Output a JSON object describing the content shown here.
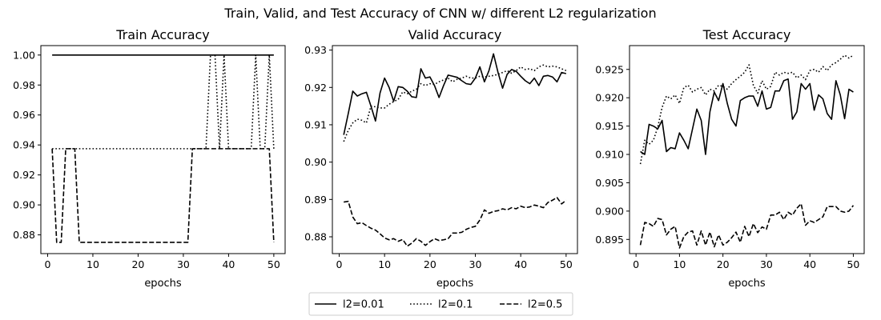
{
  "chart_data": {
    "type": "line",
    "suptitle": "Train, Valid, and Test Accuracy of CNN w/ different L2 regularization",
    "legend": {
      "placement": "bottom-center",
      "entries": [
        {
          "label": "l2=0.01",
          "style": "solid"
        },
        {
          "label": "l2=0.1",
          "style": "dotted"
        },
        {
          "label": "l2=0.5",
          "style": "dashed"
        }
      ]
    },
    "series_styles": {
      "solid": "#000000",
      "dotted": "#000000",
      "dashed": "#000000"
    },
    "panels": [
      {
        "title": "Train Accuracy",
        "xlabel": "epochs",
        "xlim": [
          -1.5,
          52.5
        ],
        "ylim": [
          0.8675,
          1.0063
        ],
        "xticks": [
          0,
          10,
          20,
          30,
          40,
          50
        ],
        "xtick_labels": [
          "0",
          "10",
          "20",
          "30",
          "40",
          "50"
        ],
        "yticks": [
          0.88,
          0.9,
          0.92,
          0.94,
          0.96,
          0.98,
          1.0
        ],
        "ytick_labels": [
          "0.88",
          "0.90",
          "0.92",
          "0.94",
          "0.96",
          "0.98",
          "1.00"
        ],
        "series": [
          {
            "style": "solid",
            "values": [
              1.0,
              1.0,
              1.0,
              1.0,
              1.0,
              1.0,
              1.0,
              1.0,
              1.0,
              1.0,
              1.0,
              1.0,
              1.0,
              1.0,
              1.0,
              1.0,
              1.0,
              1.0,
              1.0,
              1.0,
              1.0,
              1.0,
              1.0,
              1.0,
              1.0,
              1.0,
              1.0,
              1.0,
              1.0,
              1.0,
              1.0,
              1.0,
              1.0,
              1.0,
              1.0,
              1.0,
              1.0,
              1.0,
              1.0,
              1.0,
              1.0,
              1.0,
              1.0,
              1.0,
              1.0,
              1.0,
              1.0,
              1.0,
              1.0,
              1.0
            ]
          },
          {
            "style": "dotted",
            "values": [
              0.9375,
              0.9375,
              0.9375,
              0.9375,
              0.9375,
              0.9375,
              0.9375,
              0.9375,
              0.9375,
              0.9375,
              0.9375,
              0.9375,
              0.9375,
              0.9375,
              0.9375,
              0.9375,
              0.9375,
              0.9375,
              0.9375,
              0.9375,
              0.9375,
              0.9375,
              0.9375,
              0.9375,
              0.9375,
              0.9375,
              0.9375,
              0.9375,
              0.9375,
              0.9375,
              0.9375,
              0.9375,
              0.9375,
              0.9375,
              0.9375,
              1.0,
              1.0,
              0.9375,
              1.0,
              0.9375,
              0.9375,
              0.9375,
              0.9375,
              0.9375,
              0.9375,
              1.0,
              0.9375,
              0.9375,
              1.0,
              0.9375
            ]
          },
          {
            "style": "dashed",
            "values": [
              0.9375,
              0.875,
              0.875,
              0.9375,
              0.9375,
              0.9375,
              0.875,
              0.875,
              0.875,
              0.875,
              0.875,
              0.875,
              0.875,
              0.875,
              0.875,
              0.875,
              0.875,
              0.875,
              0.875,
              0.875,
              0.875,
              0.875,
              0.875,
              0.875,
              0.875,
              0.875,
              0.875,
              0.875,
              0.875,
              0.875,
              0.875,
              0.9375,
              0.9375,
              0.9375,
              0.9375,
              0.9375,
              0.9375,
              0.9375,
              0.9375,
              0.9375,
              0.9375,
              0.9375,
              0.9375,
              0.9375,
              0.9375,
              0.9375,
              0.9375,
              0.9375,
              0.9375,
              0.875
            ]
          }
        ]
      },
      {
        "title": "Valid Accuracy",
        "xlabel": "epochs",
        "xlim": [
          -1.5,
          52.5
        ],
        "ylim": [
          0.8755,
          0.9312
        ],
        "xticks": [
          0,
          10,
          20,
          30,
          40,
          50
        ],
        "xtick_labels": [
          "0",
          "10",
          "20",
          "30",
          "40",
          "50"
        ],
        "yticks": [
          0.88,
          0.89,
          0.9,
          0.91,
          0.92,
          0.93
        ],
        "ytick_labels": [
          "0.88",
          "0.89",
          "0.90",
          "0.91",
          "0.92",
          "0.93"
        ],
        "series": [
          {
            "style": "solid",
            "values": [
              0.9073,
              0.913,
              0.919,
              0.9177,
              0.9183,
              0.9187,
              0.915,
              0.911,
              0.9185,
              0.9225,
              0.92,
              0.9163,
              0.9202,
              0.92,
              0.919,
              0.9175,
              0.9173,
              0.925,
              0.9225,
              0.9228,
              0.9205,
              0.9173,
              0.9205,
              0.9233,
              0.923,
              0.9227,
              0.9218,
              0.921,
              0.9208,
              0.9225,
              0.9255,
              0.9215,
              0.9245,
              0.929,
              0.924,
              0.9198,
              0.9235,
              0.9248,
              0.9243,
              0.923,
              0.9218,
              0.921,
              0.9225,
              0.9205,
              0.923,
              0.9232,
              0.9228,
              0.9215,
              0.924,
              0.9237
            ]
          },
          {
            "style": "dotted",
            "values": [
              0.9055,
              0.9085,
              0.9105,
              0.9115,
              0.9112,
              0.9105,
              0.915,
              0.9148,
              0.9145,
              0.9145,
              0.9155,
              0.9162,
              0.9168,
              0.9188,
              0.9183,
              0.919,
              0.9195,
              0.921,
              0.9205,
              0.921,
              0.9208,
              0.9215,
              0.922,
              0.9225,
              0.9215,
              0.9222,
              0.9225,
              0.923,
              0.9225,
              0.9225,
              0.923,
              0.9228,
              0.923,
              0.9232,
              0.9235,
              0.924,
              0.9245,
              0.9238,
              0.9245,
              0.9255,
              0.9248,
              0.925,
              0.9245,
              0.9255,
              0.926,
              0.9255,
              0.9257,
              0.9255,
              0.925,
              0.9245
            ]
          },
          {
            "style": "dashed",
            "values": [
              0.8893,
              0.8895,
              0.8853,
              0.8835,
              0.8838,
              0.883,
              0.8823,
              0.8818,
              0.8808,
              0.8797,
              0.8792,
              0.8795,
              0.8788,
              0.8793,
              0.8775,
              0.8783,
              0.8795,
              0.8788,
              0.8777,
              0.8787,
              0.8795,
              0.879,
              0.8792,
              0.8795,
              0.881,
              0.881,
              0.8812,
              0.882,
              0.8825,
              0.8828,
              0.8845,
              0.8872,
              0.8863,
              0.8868,
              0.887,
              0.8875,
              0.8872,
              0.8878,
              0.8875,
              0.8882,
              0.8878,
              0.888,
              0.8885,
              0.8882,
              0.8878,
              0.8892,
              0.8898,
              0.8905,
              0.8888,
              0.8898
            ]
          }
        ]
      },
      {
        "title": "Test Accuracy",
        "xlabel": "epochs",
        "xlim": [
          -1.5,
          52.5
        ],
        "ylim": [
          0.8925,
          0.9292
        ],
        "xticks": [
          0,
          10,
          20,
          30,
          40,
          50
        ],
        "xtick_labels": [
          "0",
          "10",
          "20",
          "30",
          "40",
          "50"
        ],
        "yticks": [
          0.895,
          0.9,
          0.905,
          0.91,
          0.915,
          0.92,
          0.925
        ],
        "ytick_labels": [
          "0.895",
          "0.900",
          "0.905",
          "0.910",
          "0.915",
          "0.920",
          "0.925"
        ],
        "series": [
          {
            "style": "solid",
            "values": [
              0.9105,
              0.91,
              0.9153,
              0.915,
              0.9145,
              0.916,
              0.9105,
              0.9112,
              0.911,
              0.9138,
              0.9125,
              0.911,
              0.9145,
              0.918,
              0.916,
              0.91,
              0.9175,
              0.921,
              0.9195,
              0.9225,
              0.919,
              0.9162,
              0.915,
              0.9195,
              0.92,
              0.9203,
              0.9203,
              0.9185,
              0.9212,
              0.918,
              0.9183,
              0.9212,
              0.9212,
              0.923,
              0.9233,
              0.9162,
              0.9175,
              0.9225,
              0.9215,
              0.9225,
              0.9178,
              0.9205,
              0.9198,
              0.9172,
              0.9162,
              0.923,
              0.9205,
              0.9163,
              0.9215,
              0.921
            ]
          },
          {
            "style": "dotted",
            "values": [
              0.9083,
              0.9125,
              0.9118,
              0.9125,
              0.9148,
              0.9183,
              0.9203,
              0.9198,
              0.9205,
              0.919,
              0.9218,
              0.9222,
              0.921,
              0.9215,
              0.9218,
              0.9205,
              0.9215,
              0.9212,
              0.9222,
              0.922,
              0.9215,
              0.9225,
              0.9232,
              0.9238,
              0.9245,
              0.9258,
              0.9222,
              0.9208,
              0.923,
              0.9215,
              0.922,
              0.9245,
              0.924,
              0.9245,
              0.9243,
              0.9245,
              0.9235,
              0.924,
              0.9232,
              0.9248,
              0.925,
              0.9245,
              0.9255,
              0.9248,
              0.9258,
              0.9262,
              0.9268,
              0.9275,
              0.927,
              0.9275
            ]
          },
          {
            "style": "dashed",
            "values": [
              0.894,
              0.898,
              0.8978,
              0.8973,
              0.8987,
              0.8985,
              0.8958,
              0.8968,
              0.8973,
              0.8935,
              0.8955,
              0.8963,
              0.8965,
              0.894,
              0.8965,
              0.894,
              0.8963,
              0.8937,
              0.8958,
              0.894,
              0.8945,
              0.8953,
              0.8963,
              0.8945,
              0.8973,
              0.8955,
              0.8978,
              0.8962,
              0.8972,
              0.8968,
              0.8993,
              0.8993,
              0.8998,
              0.8985,
              0.8998,
              0.8993,
              0.9005,
              0.9013,
              0.8975,
              0.8983,
              0.898,
              0.8985,
              0.899,
              0.9008,
              0.9008,
              0.9008,
              0.9,
              0.8998,
              0.9,
              0.901
            ]
          }
        ]
      }
    ]
  }
}
